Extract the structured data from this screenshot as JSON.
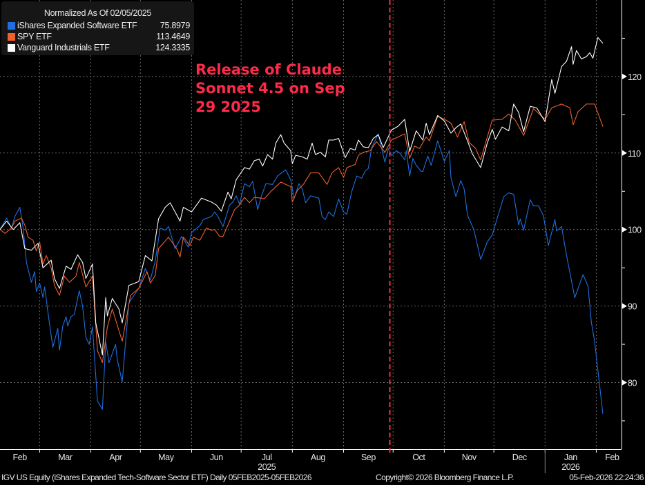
{
  "legend": {
    "title": "Normalized As Of 02/05/2025",
    "items": [
      {
        "name": "iShares Expanded Software ETF",
        "value": "75.8979",
        "color": "#1f6fe0"
      },
      {
        "name": "SPY ETF",
        "value": "113.4649",
        "color": "#f0602a"
      },
      {
        "name": "Vanguard Industrials ETF",
        "value": "124.3335",
        "color": "#ffffff"
      }
    ]
  },
  "annotation": {
    "text": "Release of Claude\nSonnet 4.5 on Sep\n29 2025",
    "date": "2025-09-29",
    "color": "#ff2a4a"
  },
  "footer": {
    "left": "IGV US Equity (iShares Expanded Tech-Software Sector ETF) Daily 05FEB2025-05FEB2026",
    "center": "Copyright© 2026 Bloomberg Finance L.P.",
    "right": "05-Feb-2026 22:24:36"
  },
  "chart_data": {
    "type": "line",
    "xlim": [
      "2025-02-05",
      "2026-02-05"
    ],
    "ylim": [
      71.3,
      130
    ],
    "y_ticks": [
      80,
      90,
      100,
      110,
      120
    ],
    "y_minor_ticks": [
      75,
      85,
      95,
      105,
      115,
      125
    ],
    "y_axis_position": "right",
    "grid": true,
    "legend_position": "top-left",
    "x_month_labels": [
      {
        "label": "Feb",
        "start": "2025-02-05"
      },
      {
        "label": "Mar",
        "start": "2025-03-01"
      },
      {
        "label": "Apr",
        "start": "2025-04-01"
      },
      {
        "label": "May",
        "start": "2025-05-01"
      },
      {
        "label": "Jun",
        "start": "2025-06-01"
      },
      {
        "label": "Jul",
        "start": "2025-07-01"
      },
      {
        "label": "Aug",
        "start": "2025-08-01"
      },
      {
        "label": "Sep",
        "start": "2025-09-01"
      },
      {
        "label": "Oct",
        "start": "2025-10-01"
      },
      {
        "label": "Nov",
        "start": "2025-11-01"
      },
      {
        "label": "Dec",
        "start": "2025-12-01"
      },
      {
        "label": "Jan",
        "start": "2026-01-01"
      },
      {
        "label": "Feb",
        "start": "2026-02-01"
      }
    ],
    "x_year_labels": [
      {
        "label": "2025",
        "under": "Jul"
      },
      {
        "label": "2026",
        "under": "Jan"
      }
    ],
    "series": [
      {
        "name": "iShares Expanded Software ETF",
        "color": "#1f6fe0",
        "dates": [
          "2025-02-05",
          "2025-02-09",
          "2025-02-12",
          "2025-02-14",
          "2025-02-17",
          "2025-02-19",
          "2025-02-21",
          "2025-02-24",
          "2025-02-26",
          "2025-02-27",
          "2025-03-01",
          "2025-03-03",
          "2025-03-04",
          "2025-03-06",
          "2025-03-09",
          "2025-03-12",
          "2025-03-13",
          "2025-03-15",
          "2025-03-17",
          "2025-03-18",
          "2025-03-20",
          "2025-03-22",
          "2025-03-25",
          "2025-03-27",
          "2025-03-29",
          "2025-03-31",
          "2025-04-02",
          "2025-04-05",
          "2025-04-08",
          "2025-04-10",
          "2025-04-12",
          "2025-04-16",
          "2025-04-17",
          "2025-04-20",
          "2025-04-24",
          "2025-04-30",
          "2025-05-04",
          "2025-05-07",
          "2025-05-10",
          "2025-05-13",
          "2025-05-16",
          "2025-05-18",
          "2025-05-22",
          "2025-05-26",
          "2025-05-30",
          "2025-06-01",
          "2025-06-06",
          "2025-06-08",
          "2025-06-13",
          "2025-06-15",
          "2025-06-17",
          "2025-06-20",
          "2025-06-24",
          "2025-06-26",
          "2025-06-28",
          "2025-06-30",
          "2025-07-03",
          "2025-07-06",
          "2025-07-08",
          "2025-07-11",
          "2025-07-13",
          "2025-07-16",
          "2025-07-20",
          "2025-07-23",
          "2025-07-28",
          "2025-07-31",
          "2025-08-02",
          "2025-08-05",
          "2025-08-07",
          "2025-08-09",
          "2025-08-12",
          "2025-08-17",
          "2025-08-19",
          "2025-08-21",
          "2025-08-23",
          "2025-08-26",
          "2025-08-29",
          "2025-09-01",
          "2025-09-03",
          "2025-09-06",
          "2025-09-09",
          "2025-09-12",
          "2025-09-14",
          "2025-09-16",
          "2025-09-18",
          "2025-09-22",
          "2025-09-26",
          "2025-09-28",
          "2025-09-30",
          "2025-10-03",
          "2025-10-05",
          "2025-10-08",
          "2025-10-09",
          "2025-10-11",
          "2025-10-13",
          "2025-10-15",
          "2025-10-18",
          "2025-10-19",
          "2025-10-22",
          "2025-10-24",
          "2025-10-28",
          "2025-11-01",
          "2025-11-04",
          "2025-11-05",
          "2025-11-08",
          "2025-11-11",
          "2025-11-13",
          "2025-11-15",
          "2025-11-19",
          "2025-11-23",
          "2025-11-27",
          "2025-11-30",
          "2025-12-07",
          "2025-12-10",
          "2025-12-13",
          "2025-12-16",
          "2025-12-17",
          "2025-12-19",
          "2025-12-23",
          "2025-12-25",
          "2025-12-28",
          "2025-12-31",
          "2026-01-03",
          "2026-01-07",
          "2026-01-08",
          "2026-01-11",
          "2026-01-14",
          "2026-01-19",
          "2026-01-24",
          "2026-01-27",
          "2026-01-29",
          "2026-01-31",
          "2026-02-02",
          "2026-02-05"
        ],
        "values": [
          100,
          101.5,
          100.2,
          101.7,
          102.9,
          100.2,
          95.7,
          93.1,
          94.5,
          91.9,
          93.0,
          91.1,
          92.5,
          89.2,
          84.6,
          87.1,
          84.2,
          87.4,
          88.6,
          87.4,
          88.6,
          88.9,
          92.0,
          90.0,
          85.9,
          85.0,
          87.3,
          77.6,
          76.5,
          85.3,
          82.6,
          85.0,
          83.0,
          80.1,
          90.4,
          92.3,
          94.9,
          93.4,
          95.9,
          100.2,
          99.9,
          100.4,
          97.5,
          99.1,
          97.7,
          99.6,
          100.5,
          101.3,
          101.7,
          102.3,
          101.7,
          100.4,
          103.2,
          103.6,
          104.4,
          103.3,
          106.0,
          105.6,
          106.3,
          102.6,
          104.2,
          106.0,
          105.9,
          107.0,
          107.8,
          106.5,
          104.0,
          106.0,
          105.3,
          103.5,
          104.4,
          104.1,
          101.7,
          101.3,
          102.3,
          101.7,
          104.0,
          102.3,
          102.0,
          105.0,
          107.0,
          106.7,
          107.6,
          108.0,
          110.7,
          112.5,
          108.8,
          110.6,
          109.7,
          110.3,
          110.0,
          109.1,
          110.3,
          107.0,
          109.3,
          108.4,
          107.6,
          107.6,
          109.6,
          108.4,
          111.6,
          108.9,
          110.3,
          106.8,
          104.3,
          106.4,
          105.3,
          101.9,
          99.9,
          96.1,
          98.4,
          99.3,
          104.3,
          104.8,
          104.6,
          100.6,
          101.4,
          99.9,
          103.9,
          103.1,
          103.1,
          101.8,
          97.9,
          101.3,
          99.8,
          100.4,
          96.6,
          91.1,
          94.1,
          92.6,
          87.9,
          85.4,
          81.6,
          75.8979
        ]
      },
      {
        "name": "SPY ETF",
        "color": "#f0602a",
        "dates": [
          "2025-02-05",
          "2025-02-08",
          "2025-02-12",
          "2025-02-14",
          "2025-02-18",
          "2025-02-20",
          "2025-02-22",
          "2025-02-25",
          "2025-02-27",
          "2025-03-01",
          "2025-03-03",
          "2025-03-05",
          "2025-03-08",
          "2025-03-10",
          "2025-03-13",
          "2025-03-16",
          "2025-03-19",
          "2025-03-23",
          "2025-03-25",
          "2025-03-29",
          "2025-04-02",
          "2025-04-05",
          "2025-04-08",
          "2025-04-11",
          "2025-04-14",
          "2025-04-17",
          "2025-04-20",
          "2025-04-25",
          "2025-04-30",
          "2025-05-05",
          "2025-05-07",
          "2025-05-10",
          "2025-05-12",
          "2025-05-18",
          "2025-05-23",
          "2025-05-25",
          "2025-05-27",
          "2025-05-31",
          "2025-06-02",
          "2025-06-06",
          "2025-06-10",
          "2025-06-13",
          "2025-06-15",
          "2025-06-18",
          "2025-06-20",
          "2025-06-24",
          "2025-06-27",
          "2025-06-30",
          "2025-07-03",
          "2025-07-06",
          "2025-07-09",
          "2025-07-13",
          "2025-07-15",
          "2025-07-19",
          "2025-07-25",
          "2025-07-31",
          "2025-08-01",
          "2025-08-04",
          "2025-08-08",
          "2025-08-12",
          "2025-08-17",
          "2025-08-22",
          "2025-08-25",
          "2025-08-29",
          "2025-09-01",
          "2025-09-03",
          "2025-09-08",
          "2025-09-10",
          "2025-09-13",
          "2025-09-17",
          "2025-09-21",
          "2025-09-26",
          "2025-09-30",
          "2025-10-04",
          "2025-10-08",
          "2025-10-11",
          "2025-10-14",
          "2025-10-17",
          "2025-10-21",
          "2025-10-23",
          "2025-10-28",
          "2025-11-02",
          "2025-11-05",
          "2025-11-09",
          "2025-11-13",
          "2025-11-16",
          "2025-11-20",
          "2025-11-23",
          "2025-11-30",
          "2025-12-06",
          "2025-12-10",
          "2025-12-14",
          "2025-12-19",
          "2025-12-25",
          "2026-01-01",
          "2026-01-05",
          "2026-01-11",
          "2026-01-16",
          "2026-01-18",
          "2026-01-21",
          "2026-01-26",
          "2026-01-31",
          "2026-02-05"
        ],
        "values": [
          100,
          99.5,
          100.2,
          101.1,
          101.5,
          100.6,
          99.0,
          98.6,
          97.2,
          98.4,
          95.5,
          96.6,
          95.0,
          92.7,
          91.4,
          93.9,
          93.1,
          93.9,
          95.7,
          92.5,
          93.9,
          84.2,
          82.6,
          87.3,
          89.6,
          87.5,
          85.4,
          91.4,
          92.3,
          94.5,
          93.0,
          94.0,
          97.5,
          99.0,
          97.5,
          96.4,
          99.0,
          97.9,
          99.0,
          98.6,
          100.2,
          99.9,
          100.0,
          99.1,
          99.1,
          101.1,
          102.6,
          103.2,
          104.2,
          103.5,
          104.2,
          104.1,
          104.0,
          105.0,
          106.2,
          105.6,
          103.6,
          105.1,
          106.0,
          107.4,
          107.4,
          105.9,
          107.4,
          108.1,
          106.8,
          108.1,
          108.5,
          109.7,
          110.1,
          110.3,
          111.5,
          110.1,
          111.7,
          112.1,
          112.5,
          109.3,
          110.9,
          110.6,
          112.1,
          111.6,
          114.8,
          114.3,
          113.9,
          112.1,
          114.1,
          111.4,
          110.6,
          109.1,
          114.3,
          114.4,
          115.1,
          114.3,
          112.3,
          115.8,
          114.4,
          115.9,
          116.4,
          115.9,
          113.7,
          115.4,
          116.4,
          116.4,
          113.4649
        ]
      },
      {
        "name": "Vanguard Industrials ETF",
        "color": "#ffffff",
        "dates": [
          "2025-02-05",
          "2025-02-09",
          "2025-02-13",
          "2025-02-17",
          "2025-02-20",
          "2025-02-24",
          "2025-02-28",
          "2025-03-03",
          "2025-03-08",
          "2025-03-10",
          "2025-03-13",
          "2025-03-17",
          "2025-03-20",
          "2025-03-24",
          "2025-03-27",
          "2025-03-29",
          "2025-04-02",
          "2025-04-04",
          "2025-04-08",
          "2025-04-10",
          "2025-04-11",
          "2025-04-14",
          "2025-04-18",
          "2025-04-20",
          "2025-04-24",
          "2025-04-30",
          "2025-05-04",
          "2025-05-08",
          "2025-05-12",
          "2025-05-16",
          "2025-05-19",
          "2025-05-25",
          "2025-05-27",
          "2025-06-01",
          "2025-06-07",
          "2025-06-13",
          "2025-06-16",
          "2025-06-19",
          "2025-06-23",
          "2025-06-25",
          "2025-06-28",
          "2025-07-03",
          "2025-07-06",
          "2025-07-09",
          "2025-07-12",
          "2025-07-14",
          "2025-07-17",
          "2025-07-20",
          "2025-07-22",
          "2025-07-25",
          "2025-07-27",
          "2025-07-31",
          "2025-08-01",
          "2025-08-03",
          "2025-08-07",
          "2025-08-10",
          "2025-08-13",
          "2025-08-15",
          "2025-08-18",
          "2025-08-21",
          "2025-08-23",
          "2025-08-26",
          "2025-08-29",
          "2025-09-02",
          "2025-09-05",
          "2025-09-08",
          "2025-09-10",
          "2025-09-13",
          "2025-09-16",
          "2025-09-19",
          "2025-09-22",
          "2025-09-25",
          "2025-09-30",
          "2025-10-04",
          "2025-10-08",
          "2025-10-11",
          "2025-10-15",
          "2025-10-19",
          "2025-10-21",
          "2025-10-23",
          "2025-10-28",
          "2025-11-01",
          "2025-11-05",
          "2025-11-08",
          "2025-11-11",
          "2025-11-15",
          "2025-11-18",
          "2025-11-23",
          "2025-11-27",
          "2025-11-30",
          "2025-12-02",
          "2025-12-06",
          "2025-12-10",
          "2025-12-13",
          "2025-12-16",
          "2025-12-19",
          "2025-12-23",
          "2025-12-27",
          "2026-01-01",
          "2026-01-05",
          "2026-01-07",
          "2026-01-11",
          "2026-01-14",
          "2026-01-17",
          "2026-01-18",
          "2026-01-20",
          "2026-01-23",
          "2026-01-26",
          "2026-01-28",
          "2026-01-30",
          "2026-02-02",
          "2026-02-05"
        ],
        "values": [
          100,
          101.1,
          100.0,
          100.9,
          97.5,
          97.3,
          98.2,
          95.0,
          96.0,
          93.6,
          92.3,
          95.2,
          94.8,
          96.7,
          95.7,
          93.6,
          95.5,
          87.8,
          83.6,
          91.1,
          88.7,
          91.0,
          89.6,
          87.8,
          92.7,
          93.2,
          96.6,
          95.9,
          101.4,
          102.9,
          103.5,
          101.1,
          102.9,
          102.3,
          104.1,
          103.6,
          103.2,
          102.4,
          104.9,
          104.0,
          106.5,
          108.1,
          107.9,
          109.0,
          109.2,
          108.3,
          109.8,
          109.2,
          111.3,
          112.4,
          111.3,
          110.3,
          108.6,
          109.7,
          109.5,
          109.2,
          111.3,
          109.8,
          110.1,
          109.5,
          111.7,
          111.7,
          111.9,
          109.4,
          110.6,
          110.4,
          111.7,
          110.8,
          110.7,
          111.9,
          112.4,
          110.7,
          113.0,
          113.5,
          114.4,
          110.2,
          112.9,
          111.7,
          113.9,
          112.4,
          114.9,
          114.2,
          112.6,
          113.3,
          113.8,
          111.6,
          109.9,
          108.1,
          111.3,
          113.1,
          111.8,
          113.4,
          112.9,
          116.4,
          115.3,
          112.8,
          116.1,
          115.9,
          114.1,
          119.6,
          117.8,
          121.3,
          122.0,
          123.9,
          121.6,
          123.4,
          122.3,
          122.6,
          123.1,
          122.4,
          125.1,
          124.3335
        ]
      }
    ]
  }
}
